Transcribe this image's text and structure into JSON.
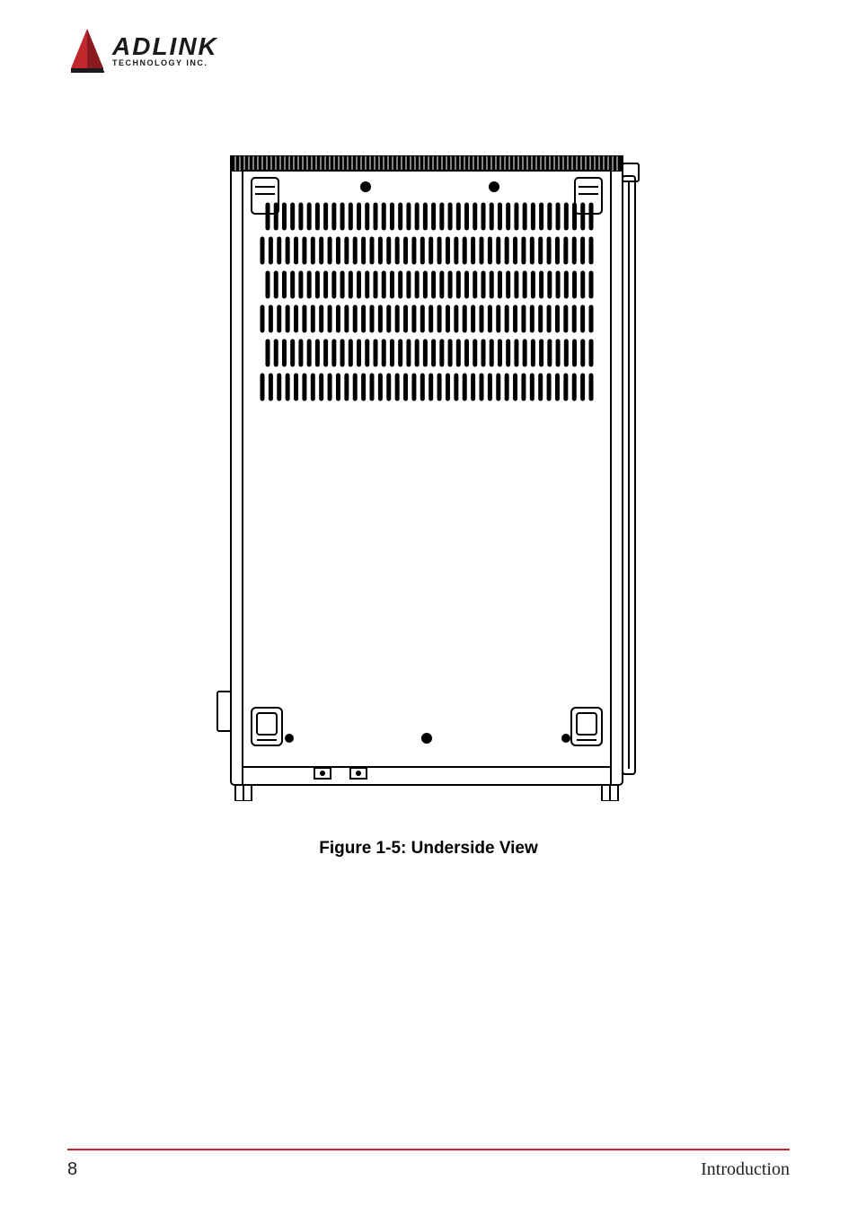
{
  "logo": {
    "main": "ADLINK",
    "sub": "TECHNOLOGY INC.",
    "triangle_color": "#c1272d",
    "text_color": "#1a1a1a"
  },
  "figure": {
    "caption": "Figure 1-5: Underside View",
    "caption_fontsize": 19,
    "caption_fontweight": "bold",
    "diagram": {
      "stroke_color": "#000000",
      "fill_color": "#ffffff",
      "outer_width": 490,
      "outer_height": 730,
      "vent_rows": 6,
      "vent_slot_color": "#000000"
    }
  },
  "footer": {
    "page_number": "8",
    "section": "Introduction",
    "rule_color": "#c1272d",
    "text_color": "#222222"
  }
}
